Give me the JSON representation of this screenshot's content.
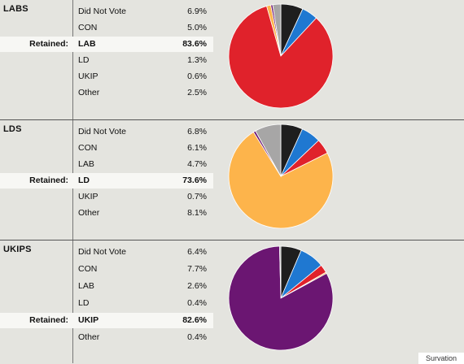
{
  "source": "Survation",
  "retained_label": "Retained:",
  "colors": {
    "Did Not Vote": "#1e1e1e",
    "CON": "#1f78d1",
    "LAB": "#e0222b",
    "LD": "#fdb44b",
    "UKIP": "#6b1672",
    "Other": "#a7a6a6"
  },
  "chart_data": [
    {
      "type": "pie",
      "title": "LABS",
      "retained": "LAB",
      "categories": [
        "Did Not Vote",
        "CON",
        "LAB",
        "LD",
        "UKIP",
        "Other"
      ],
      "values": [
        6.9,
        5.0,
        83.6,
        1.3,
        0.6,
        2.5
      ],
      "labels": [
        "6.9%",
        "5.0%",
        "83.6%",
        "1.3%",
        "0.6%",
        "2.5%"
      ]
    },
    {
      "type": "pie",
      "title": "LDS",
      "retained": "LD",
      "categories": [
        "Did Not Vote",
        "CON",
        "LAB",
        "LD",
        "UKIP",
        "Other"
      ],
      "values": [
        6.8,
        6.1,
        4.7,
        73.6,
        0.7,
        8.1
      ],
      "labels": [
        "6.8%",
        "6.1%",
        "4.7%",
        "73.6%",
        "0.7%",
        "8.1%"
      ]
    },
    {
      "type": "pie",
      "title": "UKIPS",
      "retained": "UKIP",
      "categories": [
        "Did Not Vote",
        "CON",
        "LAB",
        "LD",
        "UKIP",
        "Other"
      ],
      "values": [
        6.4,
        7.7,
        2.6,
        0.4,
        82.6,
        0.4
      ],
      "labels": [
        "6.4%",
        "7.7%",
        "2.6%",
        "0.4%",
        "82.6%",
        "0.4%"
      ]
    }
  ]
}
